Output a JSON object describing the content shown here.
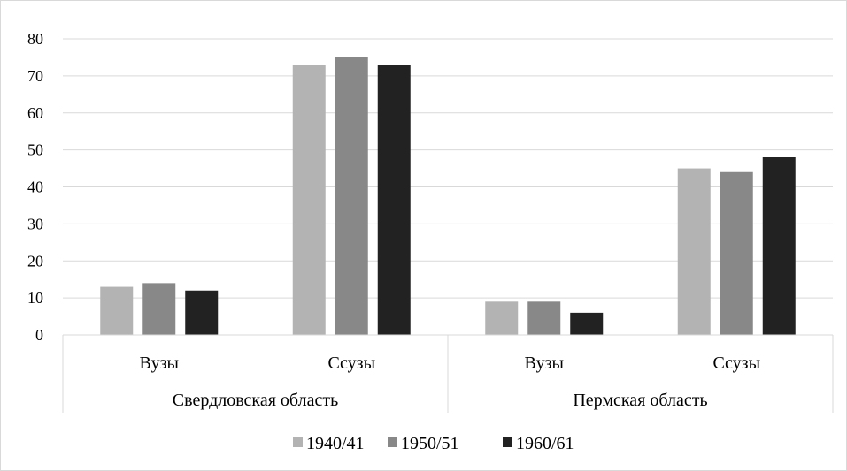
{
  "chart_data": {
    "type": "bar",
    "title": "",
    "xlabel": "",
    "ylabel": "",
    "ylim": [
      0,
      80
    ],
    "yticks": [
      0,
      10,
      20,
      30,
      40,
      50,
      60,
      70,
      80
    ],
    "grid": true,
    "legend_position": "bottom",
    "groups": [
      {
        "label": "Свердловская область",
        "categories": [
          "Вузы",
          "Ссузы"
        ]
      },
      {
        "label": "Пермская область",
        "categories": [
          "Вузы",
          "Ссузы"
        ]
      }
    ],
    "categories": [
      "Вузы",
      "Ссузы",
      "Вузы",
      "Ссузы"
    ],
    "series": [
      {
        "name": "1940/41",
        "color": "#b3b3b3",
        "values": [
          13,
          73,
          9,
          45
        ]
      },
      {
        "name": "1950/51",
        "color": "#888888",
        "values": [
          14,
          75,
          9,
          44
        ]
      },
      {
        "name": "1960/61",
        "color": "#222222",
        "values": [
          12,
          73,
          6,
          48
        ]
      }
    ]
  }
}
